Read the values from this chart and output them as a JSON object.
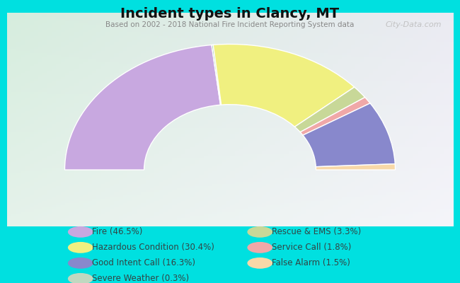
{
  "title": "Incident types in Clancy, MT",
  "subtitle": "Based on 2002 - 2018 National Fire Incident Reporting System data",
  "background_color": "#00e0e0",
  "chart_bg_gradient_corners": [
    "#d8ede0",
    "#d8ede0",
    "#e8f4f0",
    "#f0f0f8"
  ],
  "ordered_segments": [
    {
      "label": "Fire (46.5%)",
      "value": 46.5,
      "color": "#c8a8e0"
    },
    {
      "label": "Severe Weather (0.3%)",
      "value": 0.3,
      "color": "#a0c8a8"
    },
    {
      "label": "Hazardous Condition (30.4%)",
      "value": 30.4,
      "color": "#f0f080"
    },
    {
      "label": "Rescue & EMS (3.3%)",
      "value": 3.3,
      "color": "#c8d898"
    },
    {
      "label": "Service Call (1.8%)",
      "value": 1.8,
      "color": "#f0a8a8"
    },
    {
      "label": "Good Intent Call (16.3%)",
      "value": 16.3,
      "color": "#8888cc"
    },
    {
      "label": "False Alarm (1.5%)",
      "value": 1.5,
      "color": "#f8d8a8"
    }
  ],
  "legend_left": [
    {
      "label": "Fire (46.5%)",
      "color": "#c8a8e0"
    },
    {
      "label": "Hazardous Condition (30.4%)",
      "color": "#f0f080"
    },
    {
      "label": "Good Intent Call (16.3%)",
      "color": "#8888cc"
    },
    {
      "label": "Severe Weather (0.3%)",
      "color": "#c0d8c0"
    }
  ],
  "legend_right": [
    {
      "label": "Rescue & EMS (3.3%)",
      "color": "#c8d898"
    },
    {
      "label": "Service Call (1.8%)",
      "color": "#f0a8a8"
    },
    {
      "label": "False Alarm (1.5%)",
      "color": "#f8d8a8"
    }
  ],
  "legend_text_color": "#334444",
  "title_color": "#111111",
  "subtitle_color": "#888888",
  "watermark": "City-Data.com",
  "outer_r": 1.0,
  "inner_r": 0.52
}
